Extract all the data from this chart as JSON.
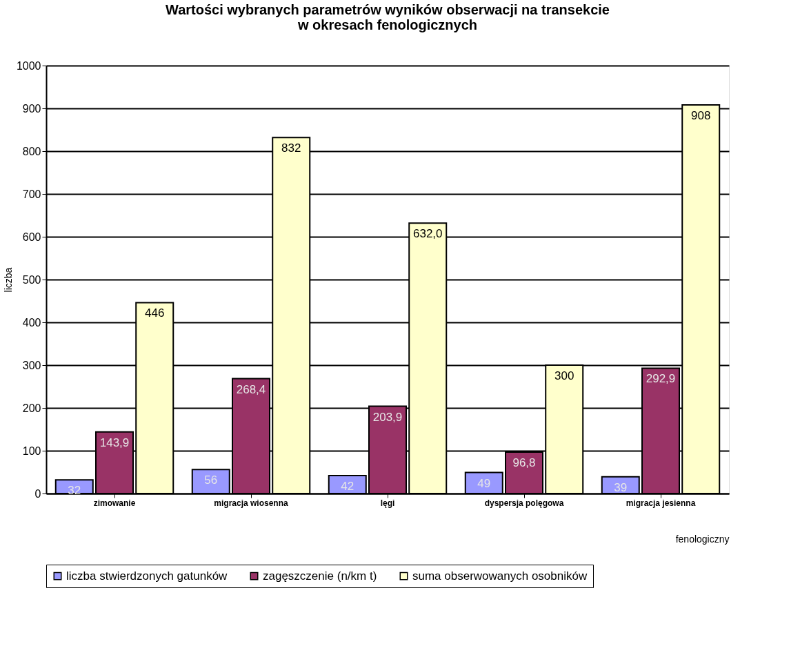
{
  "chart_data": {
    "type": "bar",
    "title": [
      "Wartości wybranych parametrów wyników obserwacji na transekcie",
      "w okresach fenologicznych"
    ],
    "xlabel": "fenologiczny",
    "ylabel": "liczba",
    "categories": [
      "zimowanie",
      "migracja wiosenna",
      "lęgi",
      "dyspersja polęgowa",
      "migracja jesienna"
    ],
    "series": [
      {
        "name": "liczba stwierdzonych gatunków",
        "color": "#9999ff",
        "values": [
          32,
          56,
          42,
          49,
          39
        ],
        "value_labels": [
          "32",
          "56",
          "42",
          "49",
          "39"
        ]
      },
      {
        "name": "zagęszczenie (n/km t)",
        "color": "#993366",
        "values": [
          143.9,
          268.4,
          203.9,
          96.8,
          292.9
        ],
        "value_labels": [
          "143,9",
          "268,4",
          "203,9",
          "96,8",
          "292,9"
        ]
      },
      {
        "name": "suma obserwowanych osobników",
        "color": "#ffffcc",
        "values": [
          446,
          832,
          632,
          300,
          908
        ],
        "value_labels": [
          "446",
          "832",
          "632,0",
          "300",
          "908"
        ]
      }
    ],
    "ylim": [
      0,
      1000
    ],
    "yticks": [
      0,
      100,
      200,
      300,
      400,
      500,
      600,
      700,
      800,
      900,
      1000
    ],
    "grid": "y",
    "legend": "bottom"
  }
}
